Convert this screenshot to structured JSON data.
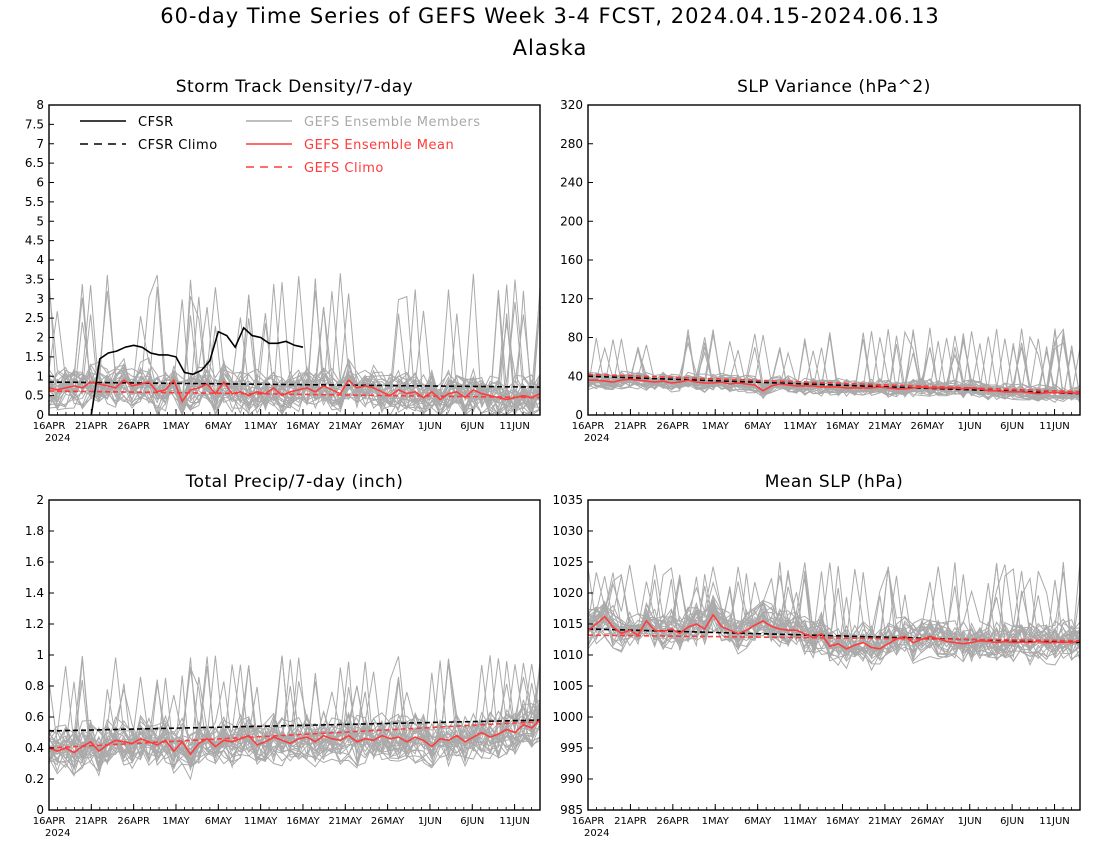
{
  "figure": {
    "title": "60-day Time Series of GEFS Week 3-4 FCST, 2024.04.15-2024.06.13",
    "subtitle": "Alaska"
  },
  "colors": {
    "cfsr": "#000000",
    "ensemble_members": "#aaaaaa",
    "ensemble_mean": "#ff3b3b",
    "gefs_climo": "#ff3b3b"
  },
  "legend": [
    {
      "label": "CFSR",
      "style": "solid",
      "color": "#000000"
    },
    {
      "label": "CFSR Climo",
      "style": "dashed",
      "color": "#000000"
    },
    {
      "label": "GEFS Ensemble Members",
      "style": "solid",
      "color": "#aaaaaa"
    },
    {
      "label": "GEFS Ensemble Mean",
      "style": "solid",
      "color": "#ff3b3b"
    },
    {
      "label": "GEFS Climo",
      "style": "dashed",
      "color": "#ff3b3b"
    }
  ],
  "x_axis": {
    "start": "2024-04-16",
    "end": "2024-06-13",
    "tick_labels": [
      "16APR",
      "21APR",
      "26APR",
      "1MAY",
      "6MAY",
      "11MAY",
      "16MAY",
      "21MAY",
      "26MAY",
      "1JUN",
      "6JUN",
      "11JUN"
    ],
    "year_label": "2024"
  },
  "chart_data": [
    {
      "type": "line",
      "title": "Storm Track Density/7-day",
      "ylim": [
        0,
        8
      ],
      "yticks": [
        "0",
        "0.5",
        "1",
        "1.5",
        "2",
        "2.5",
        "3",
        "3.5",
        "4",
        "4.5",
        "5",
        "5.5",
        "6",
        "6.5",
        "7",
        "7.5",
        "8"
      ],
      "legend_position": "top-left",
      "series": [
        {
          "name": "CFSR",
          "x": [
            "2024-04-21",
            "2024-04-22",
            "2024-04-23",
            "2024-04-24",
            "2024-04-25",
            "2024-04-26",
            "2024-04-27",
            "2024-04-28",
            "2024-04-29",
            "2024-04-30",
            "2024-05-01",
            "2024-05-02",
            "2024-05-03",
            "2024-05-04",
            "2024-05-05",
            "2024-05-06",
            "2024-05-07",
            "2024-05-08",
            "2024-05-09",
            "2024-05-10",
            "2024-05-11",
            "2024-05-12",
            "2024-05-13",
            "2024-05-14",
            "2024-05-15",
            "2024-05-16"
          ],
          "values": [
            0,
            1.45,
            1.6,
            1.65,
            1.75,
            1.8,
            1.75,
            1.6,
            1.55,
            1.55,
            1.5,
            1.1,
            1.05,
            1.15,
            1.4,
            2.15,
            2.05,
            1.75,
            2.25,
            2.05,
            2.0,
            1.85,
            1.85,
            1.9,
            1.8,
            1.75
          ]
        },
        {
          "name": "CFSR Climo",
          "x_range": [
            "2024-04-16",
            "2024-06-13"
          ],
          "values_start_end": [
            0.85,
            0.72
          ]
        },
        {
          "name": "GEFS Ensemble Mean",
          "values": [
            0.7,
            0.65,
            0.7,
            0.75,
            0.7,
            0.85,
            0.8,
            0.75,
            0.7,
            0.9,
            0.75,
            0.8,
            0.85,
            0.6,
            0.65,
            0.9,
            0.35,
            0.65,
            0.7,
            0.8,
            0.55,
            0.85,
            0.55,
            0.6,
            0.5,
            0.6,
            0.55,
            0.7,
            0.5,
            0.6,
            0.65,
            0.7,
            0.6,
            0.75,
            0.65,
            0.55,
            0.9,
            0.7,
            0.75,
            0.7,
            0.6,
            0.5,
            0.65,
            0.55,
            0.6,
            0.45,
            0.6,
            0.4,
            0.55,
            0.6,
            0.45,
            0.65,
            0.55,
            0.5,
            0.45,
            0.4,
            0.45,
            0.5,
            0.45,
            0.55
          ]
        },
        {
          "name": "GEFS Climo",
          "x_range": [
            "2024-04-16",
            "2024-06-13"
          ],
          "values_start_end": [
            0.62,
            0.45
          ]
        }
      ],
      "members": {
        "count": 30,
        "spread": 0.5,
        "peak": 3.7
      }
    },
    {
      "type": "line",
      "title": "SLP Variance (hPa^2)",
      "ylim": [
        0,
        320
      ],
      "yticks": [
        "0",
        "40",
        "80",
        "120",
        "160",
        "200",
        "240",
        "280",
        "320"
      ],
      "series": [
        {
          "name": "CFSR Climo",
          "x_range": [
            "2024-04-16",
            "2024-06-13"
          ],
          "values_start_end": [
            40,
            22
          ]
        },
        {
          "name": "GEFS Ensemble Mean",
          "values": [
            36,
            36,
            35,
            34,
            36,
            37,
            36,
            35,
            34,
            35,
            33,
            34,
            36,
            34,
            33,
            33,
            34,
            32,
            33,
            32,
            31,
            25,
            30,
            32,
            31,
            30,
            30,
            30,
            29,
            29,
            29,
            28,
            28,
            28,
            28,
            29,
            28,
            27,
            27,
            28,
            29,
            28,
            28,
            28,
            28,
            27,
            28,
            27,
            25,
            25,
            24,
            24,
            24,
            23,
            22,
            23,
            23,
            23,
            23,
            22
          ]
        },
        {
          "name": "GEFS Climo",
          "x_range": [
            "2024-04-16",
            "2024-06-13"
          ],
          "values_start_end": [
            42,
            24
          ]
        }
      ],
      "members": {
        "count": 30,
        "spread": 8,
        "peak": 90
      }
    },
    {
      "type": "line",
      "title": "Total Precip/7-day (inch)",
      "ylim": [
        0,
        2
      ],
      "yticks": [
        "0",
        "0.2",
        "0.4",
        "0.6",
        "0.8",
        "1",
        "1.2",
        "1.4",
        "1.6",
        "1.8",
        "2"
      ],
      "series": [
        {
          "name": "CFSR Climo",
          "x_range": [
            "2024-04-16",
            "2024-06-13"
          ],
          "values_start_end": [
            0.51,
            0.58
          ]
        },
        {
          "name": "GEFS Ensemble Mean",
          "values": [
            0.4,
            0.38,
            0.4,
            0.37,
            0.41,
            0.44,
            0.38,
            0.42,
            0.45,
            0.44,
            0.43,
            0.46,
            0.44,
            0.42,
            0.45,
            0.38,
            0.44,
            0.36,
            0.43,
            0.46,
            0.41,
            0.45,
            0.44,
            0.46,
            0.48,
            0.42,
            0.44,
            0.47,
            0.45,
            0.43,
            0.46,
            0.47,
            0.44,
            0.48,
            0.46,
            0.45,
            0.48,
            0.44,
            0.46,
            0.45,
            0.48,
            0.46,
            0.47,
            0.44,
            0.47,
            0.45,
            0.41,
            0.46,
            0.45,
            0.48,
            0.44,
            0.47,
            0.5,
            0.47,
            0.49,
            0.52,
            0.5,
            0.55,
            0.53,
            0.58
          ]
        },
        {
          "name": "GEFS Climo",
          "x_range": [
            "2024-04-16",
            "2024-06-13"
          ],
          "values_start_end": [
            0.4,
            0.57
          ]
        }
      ],
      "members": {
        "count": 30,
        "spread": 0.14,
        "peak": 1.0
      }
    },
    {
      "type": "line",
      "title": "Mean SLP (hPa)",
      "ylim": [
        985,
        1035
      ],
      "yticks": [
        "985",
        "990",
        "995",
        "1000",
        "1005",
        "1010",
        "1015",
        "1020",
        "1025",
        "1030",
        "1035"
      ],
      "series": [
        {
          "name": "CFSR Climo",
          "x_range": [
            "2024-04-16",
            "2024-06-13"
          ],
          "values_start_end": [
            1014.2,
            1012.0
          ]
        },
        {
          "name": "GEFS Ensemble Mean",
          "values": [
            1014,
            1015,
            1016.2,
            1014.5,
            1013.5,
            1014,
            1013.2,
            1015.5,
            1014,
            1013.8,
            1014.2,
            1013.5,
            1014.5,
            1015,
            1014.2,
            1016.5,
            1014.6,
            1014,
            1013.4,
            1014,
            1014.8,
            1015.5,
            1014.6,
            1014.2,
            1014,
            1014,
            1013.4,
            1012.8,
            1013.4,
            1011.4,
            1011.8,
            1011,
            1011.6,
            1012,
            1011.2,
            1011,
            1011.8,
            1012.6,
            1013,
            1012,
            1012.5,
            1013,
            1012.6,
            1012.2,
            1012,
            1011.8,
            1012,
            1012.3,
            1012.2,
            1012,
            1012.2,
            1012,
            1012.1,
            1012,
            1012.2,
            1012,
            1012,
            1012.1,
            1012,
            1012.3
          ]
        },
        {
          "name": "GEFS Climo",
          "x_range": [
            "2024-04-16",
            "2024-06-13"
          ],
          "values_start_end": [
            1013.2,
            1012.3
          ]
        }
      ],
      "members": {
        "count": 30,
        "spread": 3,
        "peak": 1025
      }
    }
  ]
}
